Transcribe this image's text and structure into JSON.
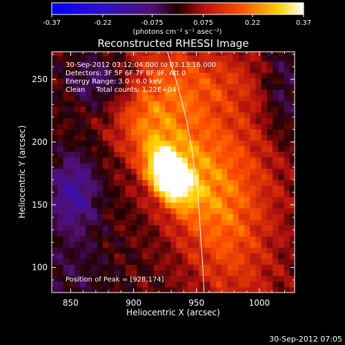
{
  "colorbar": {
    "ticks": [
      "-0.37",
      "-0.22",
      "-0.075",
      "0.075",
      "0.22",
      "0.37"
    ],
    "unit_label": "(photons cm⁻² s⁻¹ asec⁻²)"
  },
  "chart_data": {
    "type": "heatmap",
    "title": "Reconstructed RHESSI Image",
    "xlabel": "Heliocentric X (arcsec)",
    "ylabel": "Heliocentric Y (arcsec)",
    "xlim": [
      835,
      1028
    ],
    "ylim": [
      80,
      272
    ],
    "xticks": [
      850,
      900,
      950,
      1000
    ],
    "yticks": [
      100,
      150,
      200,
      250
    ],
    "clim": [
      -0.37,
      0.37
    ],
    "colormap": "black-blue-purple-red-yellow-white",
    "peak": [
      928,
      174
    ],
    "limb_curve": [
      [
        927,
        272
      ],
      [
        935,
        245
      ],
      [
        942,
        218
      ],
      [
        947,
        190
      ],
      [
        951,
        160
      ],
      [
        953,
        130
      ],
      [
        955,
        100
      ],
      [
        956,
        80
      ]
    ],
    "annotations": {
      "time_range": "30-Sep-2012 03:12:04.000 to 03:13:16.000",
      "detectors": "Detectors: 3F 5F 6F 7F 8F 9F, Att 0",
      "energy_range": "Energy Range: 3.0 - 6.0 keV",
      "method_counts": "Clean     Total counts: 1.22E+04",
      "peak_position": "Position of Peak = [928,174]"
    }
  },
  "timestamp": "30-Sep-2012 07:05"
}
